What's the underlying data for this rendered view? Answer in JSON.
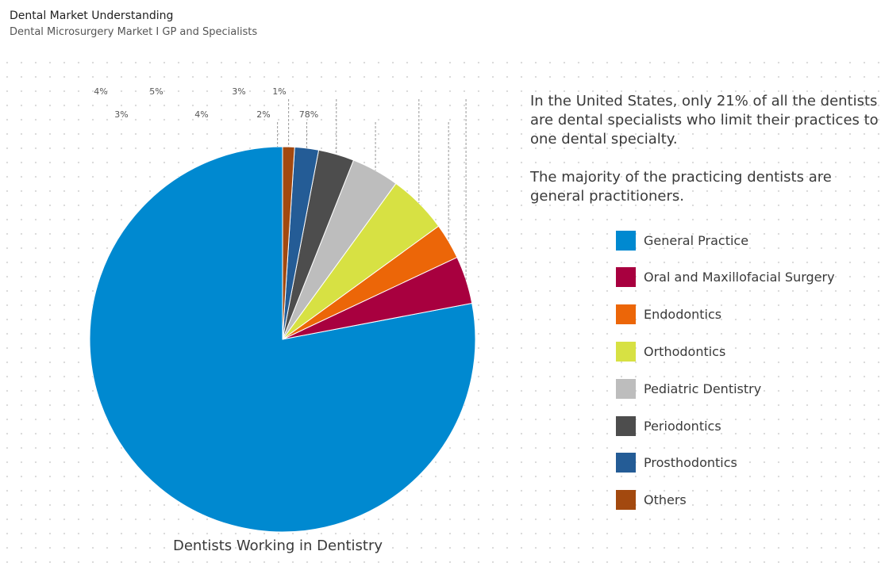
{
  "header": {
    "title": "Dental Market Understanding",
    "subtitle": "Dental Microsurgery Market I GP and Specialists"
  },
  "info": {
    "paragraph_1": "In the United States, only 21% of all the dentists are dental specialists who limit their practices to one dental specialty.",
    "paragraph_2": "The majority of the practicing dentists are general practitioners."
  },
  "chart_data": {
    "type": "pie",
    "title": "Dentists Working in Dentistry",
    "start": "top, counter-clockwise",
    "slices": [
      {
        "name": "General Practice",
        "value": 78,
        "label": "78%",
        "color": "#0089d0"
      },
      {
        "name": "Oral and Maxillofacial Surgery",
        "value": 4,
        "label": "4%",
        "color": "#a8003f"
      },
      {
        "name": "Endodontics",
        "value": 3,
        "label": "3%",
        "color": "#ec6608"
      },
      {
        "name": "Orthodontics",
        "value": 5,
        "label": "5%",
        "color": "#d7e143"
      },
      {
        "name": "Pediatric Dentistry",
        "value": 4,
        "label": "4%",
        "color": "#bdbdbd"
      },
      {
        "name": "Periodontics",
        "value": 3,
        "label": "3%",
        "color": "#4d4d4d"
      },
      {
        "name": "Prosthodontics",
        "value": 2,
        "label": "2%",
        "color": "#245c96"
      },
      {
        "name": "Others",
        "value": 1,
        "label": "1%",
        "color": "#a3490f"
      }
    ],
    "legend": "right"
  }
}
